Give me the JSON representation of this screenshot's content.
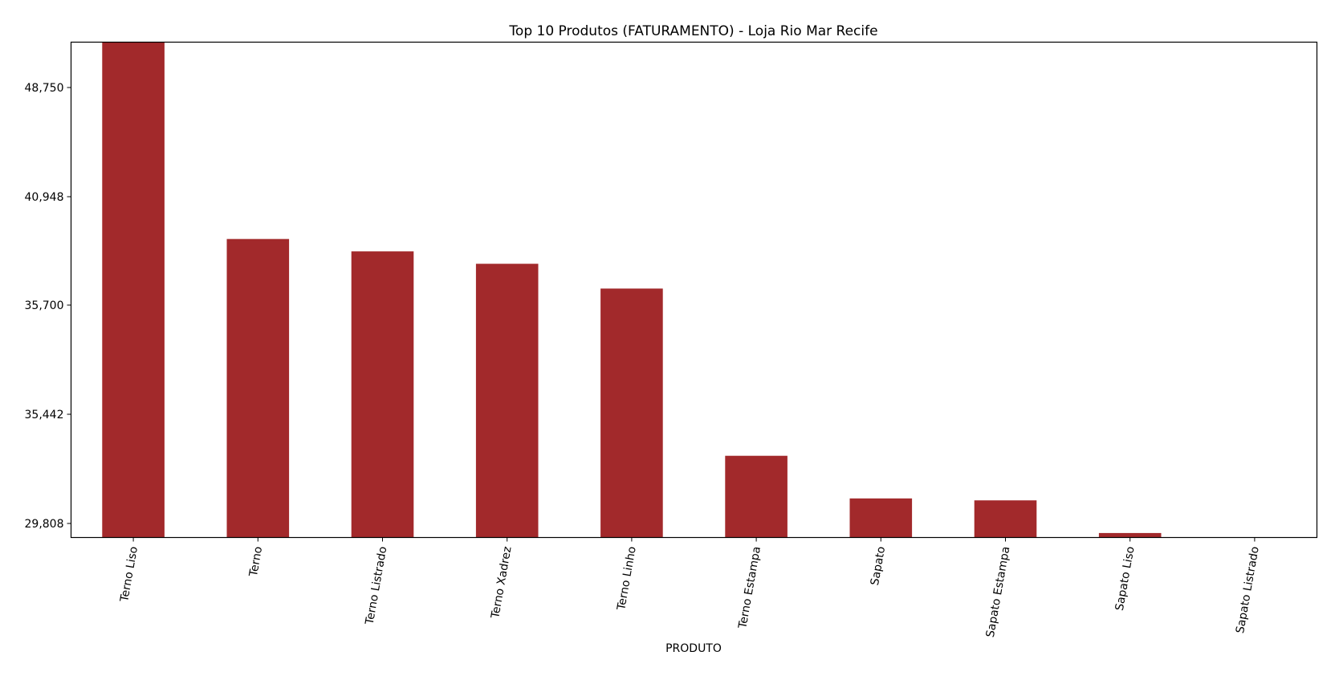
{
  "chart_data": {
    "type": "bar",
    "title": "Top 10 Produtos (FATURAMENTO) - Loja Rio Mar Recife",
    "xlabel": "PRODUTO",
    "ylabel": "",
    "categories": [
      "Terno Liso",
      "Terno",
      "Terno Listrado",
      "Terno Xadrez",
      "Terno Linho",
      "Terno Estampa",
      "Sapato",
      "Sapato Estampa",
      "Sapato Liso",
      "Sapato Listrado"
    ],
    "y_ticks": [
      "48,750",
      "40,948",
      "35,700",
      "35,442",
      "29,808"
    ],
    "values": [
      52000,
      38900,
      38300,
      37700,
      36500,
      33300,
      31100,
      31000,
      28850,
      28400
    ],
    "ylim": [
      28400,
      52000
    ],
    "y_tick_values": [
      48750,
      40948,
      35700,
      35442,
      29808
    ],
    "bar_color": "#a2292b",
    "grid": false,
    "legend": "none"
  }
}
